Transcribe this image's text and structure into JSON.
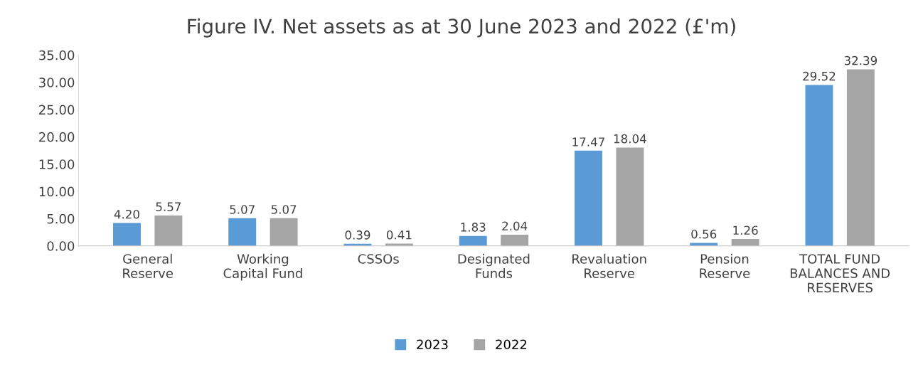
{
  "chart_data": {
    "type": "bar",
    "title": "Figure IV. Net assets as at 30 June 2023 and 2022 (£'m)",
    "categories": [
      "General\nReserve",
      "Working\nCapital Fund",
      "CSSOs",
      "Designated\nFunds",
      "Revaluation\nReserve",
      "Pension\nReserve",
      "TOTAL FUND\nBALANCES AND\nRESERVES"
    ],
    "series": [
      {
        "name": "2023",
        "color": "#5b9bd5",
        "values": [
          4.2,
          5.07,
          0.39,
          1.83,
          17.47,
          0.56,
          29.52
        ],
        "value_labels": [
          "4.20",
          "5.07",
          "0.39",
          "1.83",
          "17.47",
          "0.56",
          "29.52"
        ]
      },
      {
        "name": "2022",
        "color": "#a5a5a5",
        "values": [
          5.57,
          5.07,
          0.41,
          2.04,
          18.04,
          1.26,
          32.39
        ],
        "value_labels": [
          "5.57",
          "5.07",
          "0.41",
          "2.04",
          "18.04",
          "1.26",
          "32.39"
        ]
      }
    ],
    "ylim": [
      0,
      35
    ],
    "yticks": [
      {
        "value": 0,
        "label": "0.00"
      },
      {
        "value": 5,
        "label": "5.00"
      },
      {
        "value": 10,
        "label": "10.00"
      },
      {
        "value": 15,
        "label": "15.00"
      },
      {
        "value": 20,
        "label": "20.00"
      },
      {
        "value": 25,
        "label": "25.00"
      },
      {
        "value": 30,
        "label": "30.00"
      },
      {
        "value": 35,
        "label": "35.00"
      }
    ],
    "grid": false,
    "legend": "bottom"
  }
}
